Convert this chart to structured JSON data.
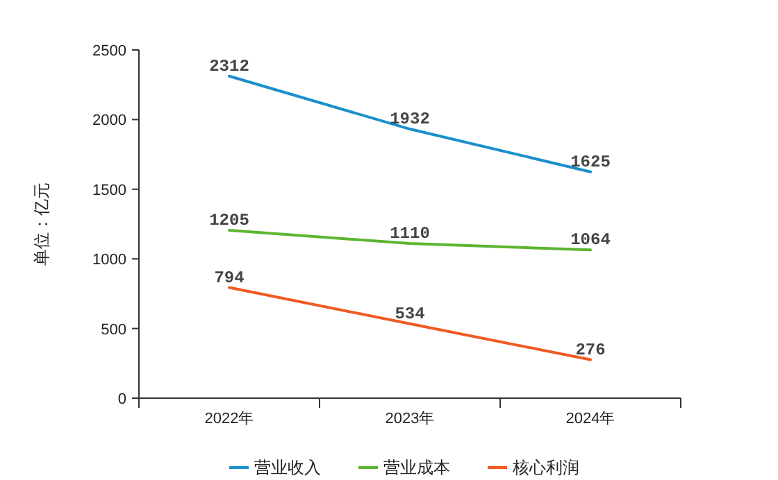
{
  "chart_data": {
    "type": "line",
    "ylabel": "单位：亿元",
    "categories": [
      "2022年",
      "2023年",
      "2024年"
    ],
    "series": [
      {
        "name": "营业收入",
        "color": "#1b8fcb",
        "values": [
          2312,
          1932,
          1625
        ]
      },
      {
        "name": "营业成本",
        "color": "#5cb531",
        "values": [
          1205,
          1110,
          1064
        ]
      },
      {
        "name": "核心利润",
        "color": "#f05a22",
        "values": [
          794,
          534,
          276
        ]
      }
    ],
    "ylim": [
      0,
      2500
    ],
    "yticks": [
      0,
      500,
      1000,
      1500,
      2000,
      2500
    ],
    "data_labels": true,
    "legend": "bottom",
    "grid": false,
    "marker": "none",
    "line_style": "solid"
  }
}
